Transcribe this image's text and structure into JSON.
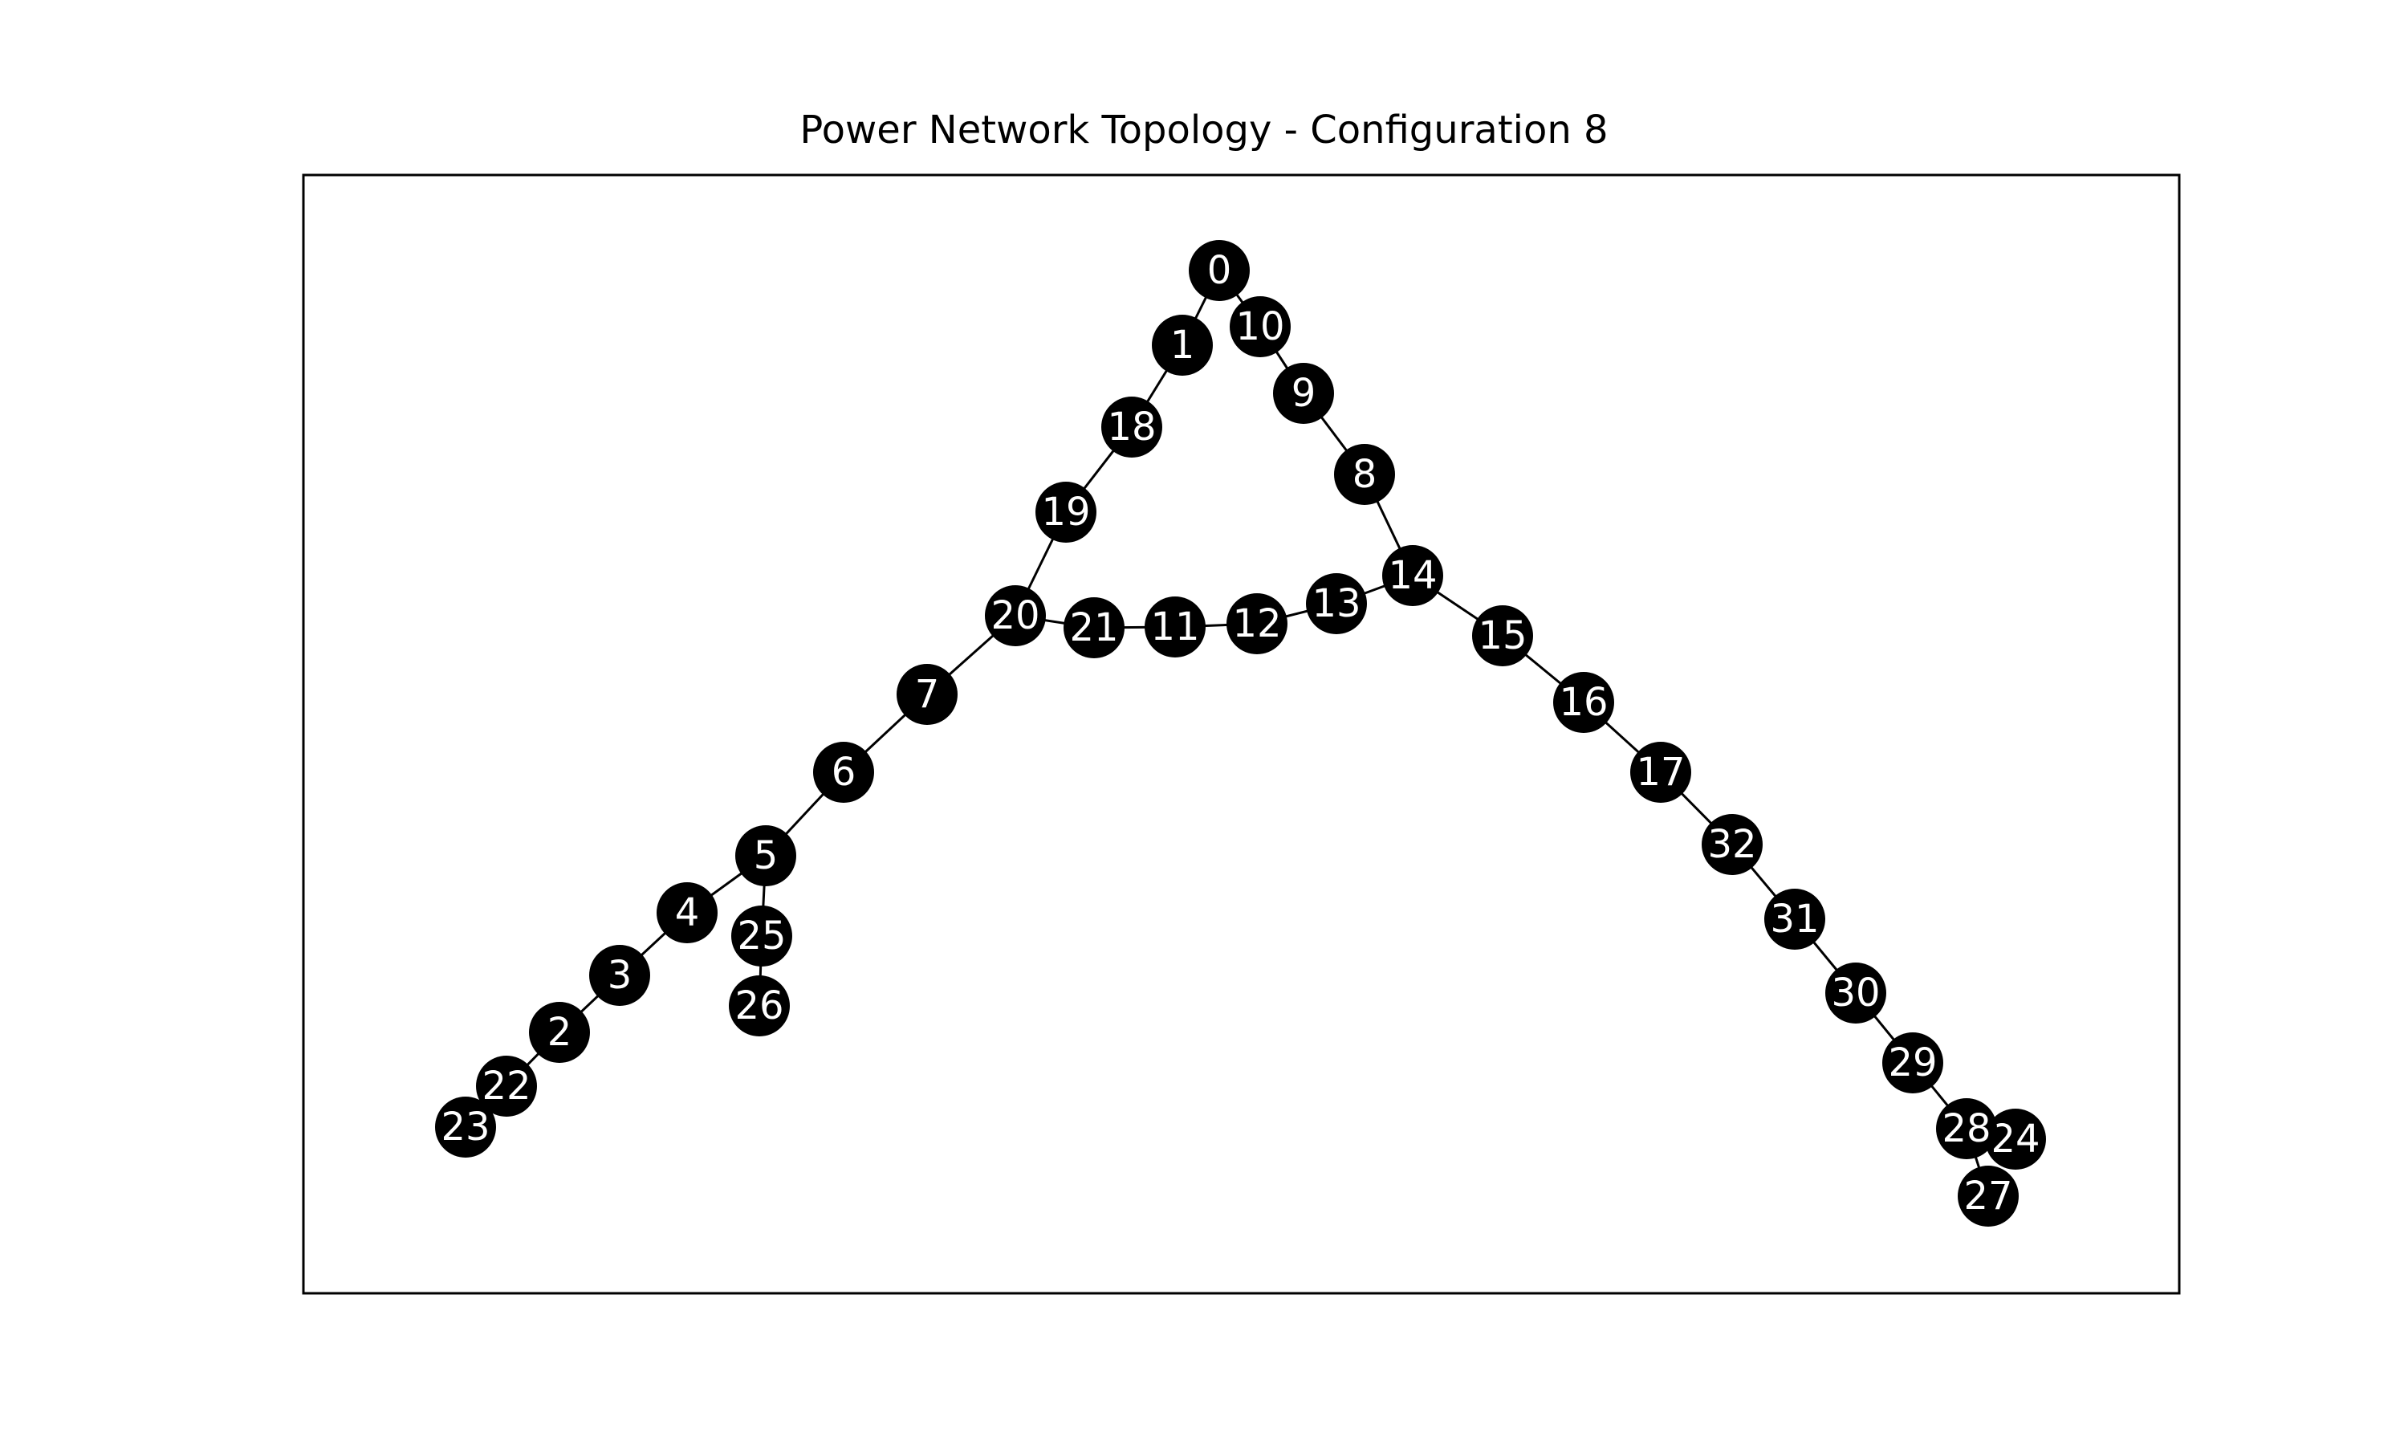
{
  "figure": {
    "title": "Power Network Topology - Configuration 8"
  },
  "style": {
    "node_color": "#000000",
    "edge_color": "#000000",
    "label_color": "#ffffff",
    "frame_color": "#000000"
  },
  "graph": {
    "nodes": [
      "0",
      "1",
      "2",
      "3",
      "4",
      "5",
      "6",
      "7",
      "8",
      "9",
      "10",
      "11",
      "12",
      "13",
      "14",
      "15",
      "16",
      "17",
      "18",
      "19",
      "20",
      "21",
      "22",
      "23",
      "24",
      "25",
      "26",
      "27",
      "28",
      "29",
      "30",
      "31",
      "32"
    ],
    "edges": [
      [
        "0",
        "1"
      ],
      [
        "1",
        "18"
      ],
      [
        "18",
        "19"
      ],
      [
        "19",
        "20"
      ],
      [
        "20",
        "7"
      ],
      [
        "7",
        "6"
      ],
      [
        "6",
        "5"
      ],
      [
        "5",
        "4"
      ],
      [
        "4",
        "3"
      ],
      [
        "3",
        "2"
      ],
      [
        "2",
        "22"
      ],
      [
        "22",
        "23"
      ],
      [
        "5",
        "25"
      ],
      [
        "25",
        "26"
      ],
      [
        "20",
        "21"
      ],
      [
        "21",
        "11"
      ],
      [
        "11",
        "12"
      ],
      [
        "12",
        "13"
      ],
      [
        "13",
        "14"
      ],
      [
        "0",
        "10"
      ],
      [
        "10",
        "9"
      ],
      [
        "9",
        "8"
      ],
      [
        "8",
        "14"
      ],
      [
        "14",
        "15"
      ],
      [
        "15",
        "16"
      ],
      [
        "16",
        "17"
      ],
      [
        "17",
        "32"
      ],
      [
        "32",
        "31"
      ],
      [
        "31",
        "30"
      ],
      [
        "30",
        "29"
      ],
      [
        "29",
        "28"
      ],
      [
        "28",
        "24"
      ],
      [
        "28",
        "27"
      ]
    ]
  }
}
